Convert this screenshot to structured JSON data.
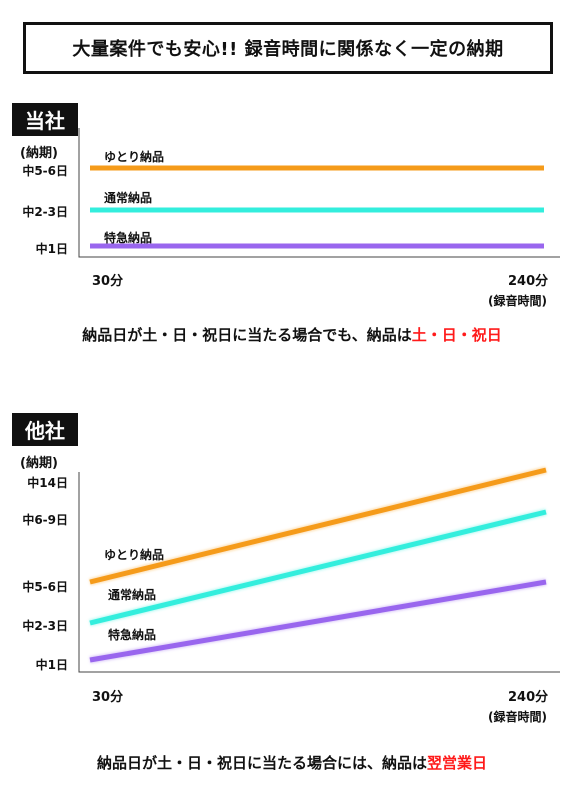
{
  "title": "大量案件でも安心!! 録音時間に関係なく一定の納期",
  "colors": {
    "express": "#9966ee",
    "normal": "#33eedd",
    "relaxed": "#f59b1a",
    "highlight": "#ff1a1a"
  },
  "chart_data": [
    {
      "type": "line",
      "panel_label": "当社",
      "ylabel": "(納期)",
      "xlabel": "(録音時間)",
      "x_ticks": [
        "30分",
        "240分"
      ],
      "y_ticks": [
        "中1日",
        "中2-3日",
        "中5-6日"
      ],
      "x": [
        30,
        240
      ],
      "series": [
        {
          "name": "ゆとり納品",
          "values": [
            "中5-6日",
            "中5-6日"
          ]
        },
        {
          "name": "通常納品",
          "values": [
            "中2-3日",
            "中2-3日"
          ]
        },
        {
          "name": "特急納品",
          "values": [
            "中1日",
            "中1日"
          ]
        }
      ],
      "caption_pre": "納品日が土・日・祝日に当たる場合でも、納品は",
      "caption_highlight": "土・日・祝日"
    },
    {
      "type": "line",
      "panel_label": "他社",
      "ylabel": "(納期)",
      "xlabel": "(録音時間)",
      "x_ticks": [
        "30分",
        "240分"
      ],
      "y_ticks": [
        "中1日",
        "中2-3日",
        "中5-6日",
        "中6-9日",
        "中14日"
      ],
      "x": [
        30,
        240
      ],
      "series": [
        {
          "name": "ゆとり納品",
          "values": [
            "中5-6日",
            "中14日"
          ]
        },
        {
          "name": "通常納品",
          "values": [
            "中2-3日",
            "中6-9日"
          ]
        },
        {
          "name": "特急納品",
          "values": [
            "中1日",
            "中5-6日"
          ]
        }
      ],
      "caption_pre": "納品日が土・日・祝日に当たる場合には、納品は",
      "caption_highlight": "翌営業日"
    }
  ]
}
